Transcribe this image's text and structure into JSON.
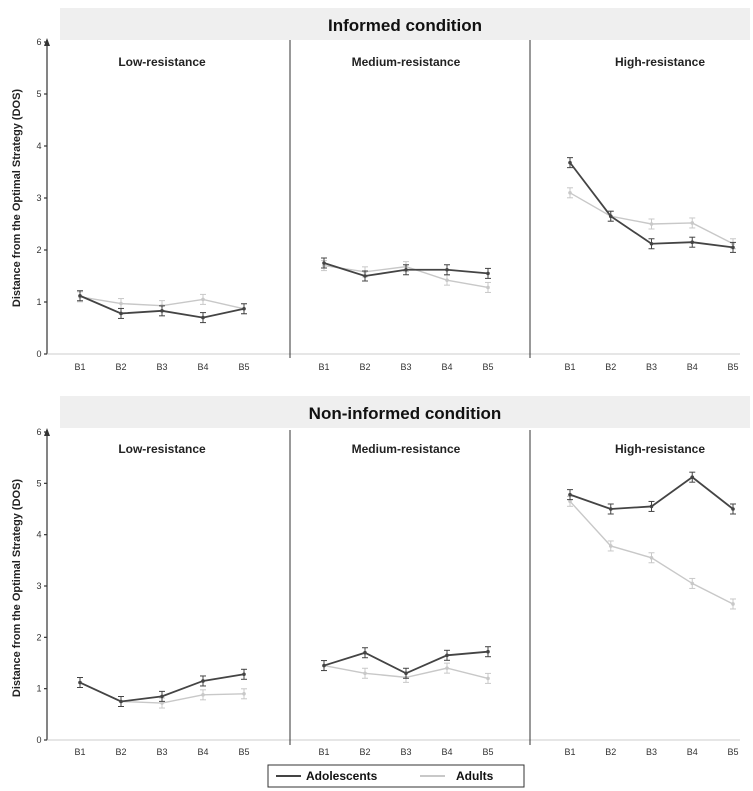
{
  "colors": {
    "adolescents": "#444444",
    "adults": "#c8c8c8"
  },
  "legend": [
    {
      "name": "Adolescents",
      "color": "#444444"
    },
    {
      "name": "Adults",
      "color": "#c8c8c8"
    }
  ],
  "chart_data": [
    {
      "type": "line",
      "title": "Informed condition",
      "ylabel": "Distance from the Optimal Strategy (DOS)",
      "ylim": [
        0,
        6
      ],
      "yticks": [
        "0",
        "1",
        "2",
        "3",
        "4",
        "5",
        "6"
      ],
      "x": [
        "B1",
        "B2",
        "B3",
        "B4",
        "B5"
      ],
      "panels": [
        {
          "title": "Low-resistance",
          "series": [
            {
              "name": "Adolescents",
              "values": [
                1.12,
                0.78,
                0.83,
                0.7,
                0.87
              ]
            },
            {
              "name": "Adults",
              "values": [
                1.1,
                0.97,
                0.93,
                1.05,
                0.87
              ]
            }
          ]
        },
        {
          "title": "Medium-resistance",
          "series": [
            {
              "name": "Adolescents",
              "values": [
                1.75,
                1.5,
                1.62,
                1.62,
                1.55
              ]
            },
            {
              "name": "Adults",
              "values": [
                1.7,
                1.58,
                1.68,
                1.42,
                1.28
              ]
            }
          ]
        },
        {
          "title": "High-resistance",
          "series": [
            {
              "name": "Adolescents",
              "values": [
                3.68,
                2.65,
                2.12,
                2.15,
                2.05
              ]
            },
            {
              "name": "Adults",
              "values": [
                3.1,
                2.65,
                2.5,
                2.52,
                2.12
              ]
            }
          ]
        }
      ]
    },
    {
      "type": "line",
      "title": "Non-informed condition",
      "ylabel": "Distance from the Optimal Strategy (DOS)",
      "ylim": [
        0,
        6
      ],
      "yticks": [
        "0",
        "1",
        "2",
        "3",
        "4",
        "5",
        "6"
      ],
      "x": [
        "B1",
        "B2",
        "B3",
        "B4",
        "B5"
      ],
      "panels": [
        {
          "title": "Low-resistance",
          "series": [
            {
              "name": "Adolescents",
              "values": [
                1.12,
                0.75,
                0.85,
                1.15,
                1.28
              ]
            },
            {
              "name": "Adults",
              "values": [
                1.12,
                0.75,
                0.72,
                0.88,
                0.9
              ]
            }
          ]
        },
        {
          "title": "Medium-resistance",
          "series": [
            {
              "name": "Adolescents",
              "values": [
                1.45,
                1.7,
                1.3,
                1.65,
                1.72
              ]
            },
            {
              "name": "Adults",
              "values": [
                1.45,
                1.3,
                1.22,
                1.4,
                1.2
              ]
            }
          ]
        },
        {
          "title": "High-resistance",
          "series": [
            {
              "name": "Adolescents",
              "values": [
                4.78,
                4.5,
                4.55,
                5.12,
                4.5
              ]
            },
            {
              "name": "Adults",
              "values": [
                4.65,
                3.78,
                3.55,
                3.05,
                2.65
              ]
            }
          ]
        }
      ]
    }
  ]
}
